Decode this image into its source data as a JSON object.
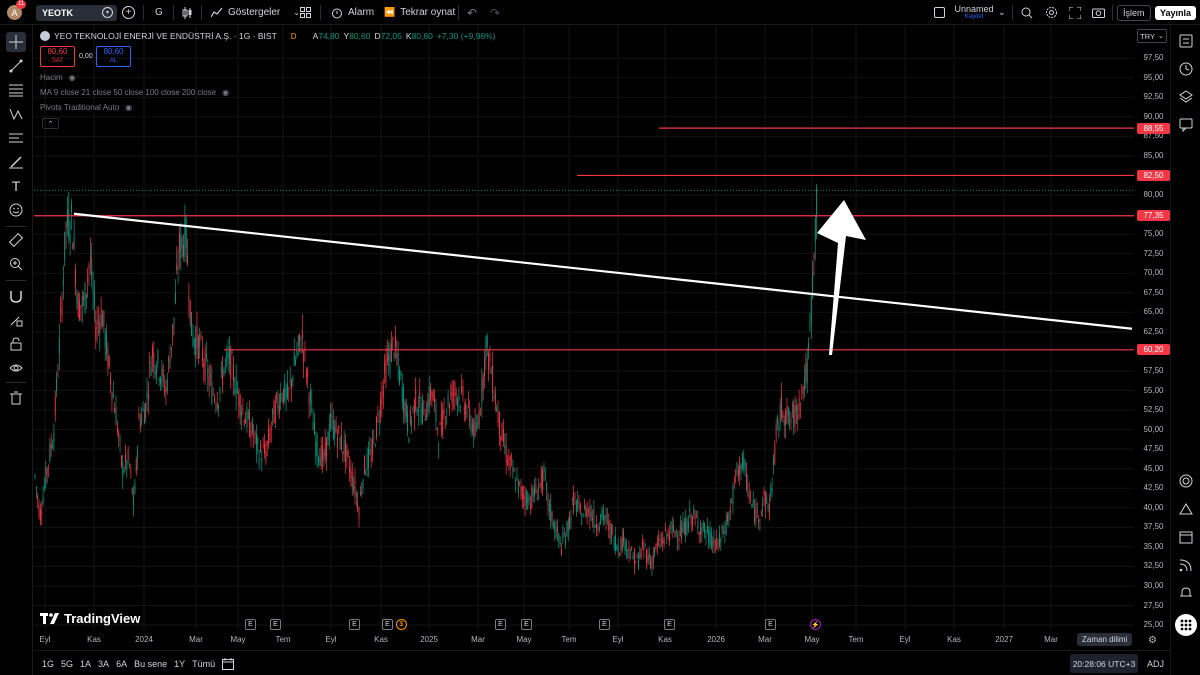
{
  "topbar": {
    "avatar_letter": "A",
    "avatar_badge": "11",
    "symbol": "YEOTK",
    "interval": "G",
    "indicators": "Göstergeler",
    "alarm": "Alarm",
    "replay": "Tekrar oynat",
    "layout_name": "Unnamed",
    "layout_status": "Kaydet",
    "trade": "İşlem",
    "publish": "Yayınla"
  },
  "legend": {
    "title": "YEO TEKNOLOJİ ENERJİ VE ENDÜSTRİ A.Ş. · 1G · BIST",
    "d_badge": "D",
    "o_lbl": "A",
    "o_val": "74,80",
    "h_lbl": "Y",
    "h_val": "80,60",
    "l_lbl": "D",
    "l_val": "72,05",
    "c_lbl": "K",
    "c_val": "80,60",
    "change": "+7,30 (+9,96%)",
    "sell_price": "80,60",
    "sell_label": "SAT",
    "spread": "0,00",
    "buy_price": "80,60",
    "buy_label": "AL",
    "volume": "Hacim",
    "ma": "MA 9 close 21 close 50 close 100 close 200 close",
    "pivots": "Pivots Traditional Auto"
  },
  "currency": "TRY",
  "price_axis": [
    "97,50",
    "95,00",
    "92,50",
    "90,00",
    "87,50",
    "85,00",
    "80,00",
    "75,00",
    "72,50",
    "70,00",
    "67,50",
    "65,00",
    "62,50",
    "57,50",
    "55,00",
    "52,50",
    "50,00",
    "47,50",
    "45,00",
    "42,50",
    "40,00",
    "37,50",
    "35,00",
    "32,50",
    "30,00",
    "27,50",
    "25,00"
  ],
  "price_tags": [
    {
      "label": "88,55",
      "value": 88.55
    },
    {
      "label": "82,50",
      "value": 82.5
    },
    {
      "label": "77,35",
      "value": 77.35
    },
    {
      "label": "60,20",
      "value": 60.2
    }
  ],
  "time_axis": [
    "Eyl",
    "Kas",
    "2024",
    "Mar",
    "May",
    "Tem",
    "Eyl",
    "Kas",
    "2025",
    "Mar",
    "May",
    "Tem",
    "Eyl",
    "Kas",
    "2026",
    "Mar",
    "May",
    "Tem",
    "Eyl",
    "Kas",
    "2027",
    "Mar"
  ],
  "events": [
    "E",
    "E",
    "E",
    "E",
    "E",
    "E",
    "E",
    "E",
    "E"
  ],
  "dividend_marker": "$",
  "watermark": "TradingView",
  "bottom": {
    "ranges": [
      "1G",
      "5G",
      "1A",
      "3A",
      "6A",
      "Bu sene",
      "1Y",
      "Tümü"
    ],
    "clock": "20:28:06 UTC+3",
    "adj": "ADJ",
    "tooltip": "Zaman dilimi"
  },
  "colors": {
    "up": "#089981",
    "down": "#f23645",
    "level": "#f23645",
    "trendline": "#ffffff",
    "background": "#000000"
  }
}
